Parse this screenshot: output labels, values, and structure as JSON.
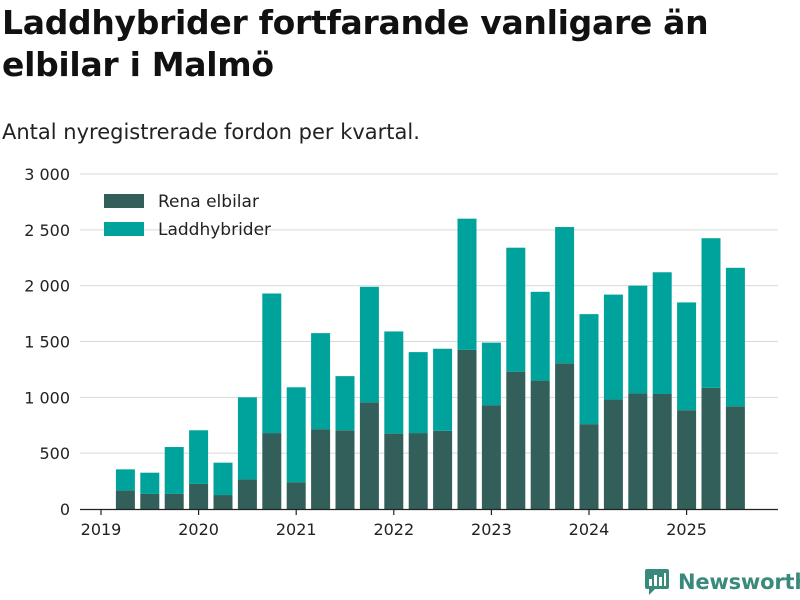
{
  "title": "Laddhybrider fortfarande vanligare än elbilar i Malmö",
  "subtitle": "Antal nyregistrerade fordon per kvartal.",
  "brand": "Newsworthy",
  "colors": {
    "elbil": "#335f5b",
    "hybrid": "#00a39b",
    "grid": "#d9d9d9",
    "brand": "#3a8a7c"
  },
  "chart_data": {
    "type": "bar",
    "stacked": true,
    "x_start": 2019,
    "quarter_labels": [
      "2019 Q2",
      "2019 Q3",
      "2019 Q4",
      "2020 Q1",
      "2020 Q2",
      "2020 Q3",
      "2020 Q4",
      "2021 Q1",
      "2021 Q2",
      "2021 Q3",
      "2021 Q4",
      "2022 Q1",
      "2022 Q2",
      "2022 Q3",
      "2022 Q4",
      "2023 Q1",
      "2023 Q2",
      "2023 Q3",
      "2023 Q4",
      "2024 Q1",
      "2024 Q2",
      "2024 Q3",
      "2024 Q4",
      "2025 Q1",
      "2025 Q2",
      "2025 Q3"
    ],
    "series": [
      {
        "name": "Rena elbilar",
        "values": [
          165,
          135,
          135,
          225,
          125,
          265,
          680,
          240,
          715,
          705,
          955,
          675,
          680,
          700,
          1425,
          930,
          1230,
          1150,
          1305,
          760,
          980,
          1035,
          1030,
          885,
          1085,
          920
        ]
      },
      {
        "name": "Laddhybrider",
        "values": [
          190,
          190,
          420,
          480,
          290,
          735,
          1250,
          850,
          860,
          485,
          1035,
          915,
          725,
          735,
          1175,
          560,
          1110,
          795,
          1220,
          985,
          940,
          965,
          1090,
          965,
          1340,
          1240
        ]
      }
    ],
    "x_ticks": [
      2019,
      2020,
      2021,
      2022,
      2023,
      2024,
      2025
    ],
    "y_ticks": [
      0,
      500,
      1000,
      1500,
      2000,
      2500,
      3000
    ],
    "y_tick_labels": [
      "0",
      "500",
      "1 000",
      "1 500",
      "2 000",
      "2 500",
      "3 000"
    ],
    "ylim": [
      0,
      3000
    ],
    "legend_position": "top-left"
  }
}
